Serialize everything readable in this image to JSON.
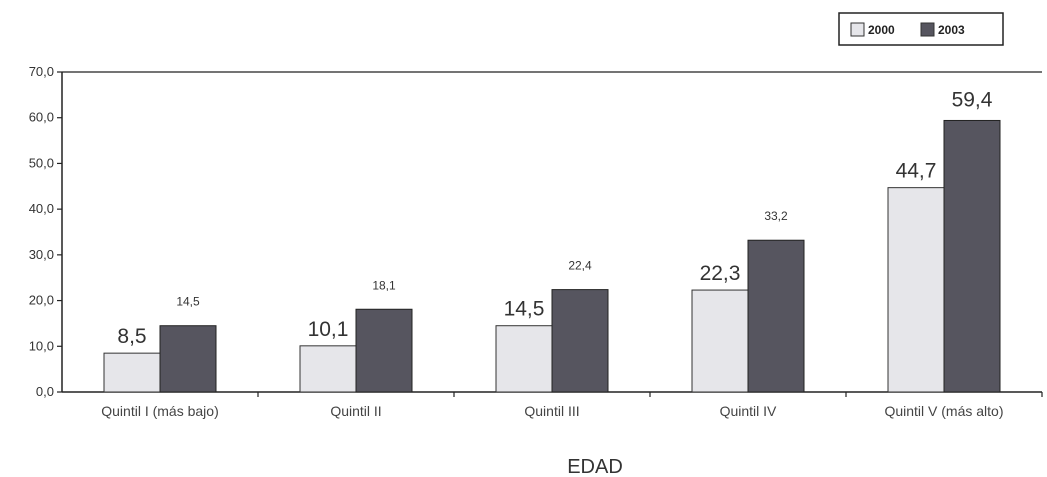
{
  "chart_data": {
    "type": "bar",
    "xlabel": "EDAD",
    "ylabel": "",
    "ylim": [
      0,
      70
    ],
    "yticks": [
      "0,0",
      "10,0",
      "20,0",
      "30,0",
      "40,0",
      "50,0",
      "60,0",
      "70,0"
    ],
    "categories": [
      "Quintil I (más bajo)",
      "Quintil II",
      "Quintil III",
      "Quintil IV",
      "Quintil V (más alto)"
    ],
    "series": [
      {
        "name": "2000",
        "values": [
          8.5,
          10.1,
          14.5,
          22.3,
          44.7
        ],
        "labels": [
          "8,5",
          "10,1",
          "14,5",
          "22,3",
          "44,7"
        ],
        "color": "#e6e6ea"
      },
      {
        "name": "2003",
        "values": [
          14.5,
          18.1,
          22.4,
          33.2,
          59.4
        ],
        "labels": [
          "14,5",
          "18,1",
          "22,4",
          "33,2",
          "59,4"
        ],
        "color": "#56555f"
      }
    ],
    "legend_position": "top-right",
    "grid": false
  }
}
